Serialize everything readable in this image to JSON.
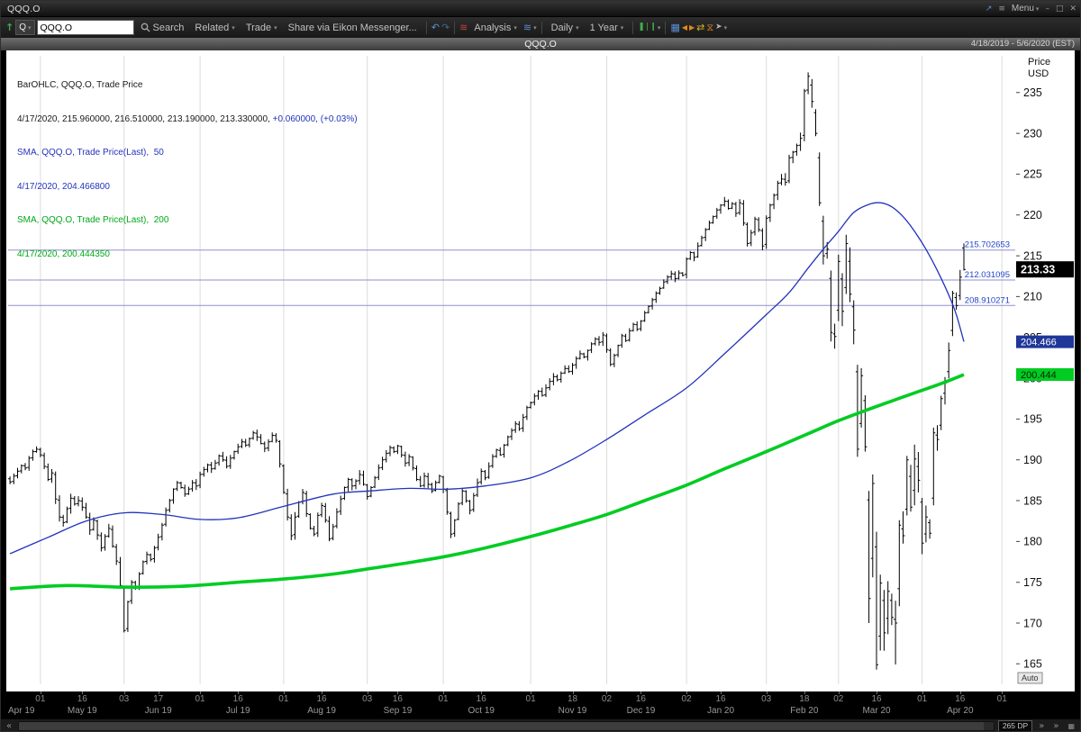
{
  "window": {
    "title": "QQQ.O",
    "menu_label": "Menu"
  },
  "icons": {
    "popout": "↗",
    "hamburger": "≡",
    "caret": "▾",
    "minimize": "–",
    "maximize": "□",
    "close": "✕",
    "app_arrow": "↑",
    "undo": "↶",
    "redo": "↷",
    "wave": "≋",
    "candle": "❚❘❙",
    "grid": "▦",
    "tri_left": "◀",
    "tri_right": "▶",
    "swap": "⇄",
    "hourglass": "⧖",
    "pointer": "➤",
    "double_left": "«",
    "double_right": "»"
  },
  "toolbar": {
    "category": "Q",
    "symbol_input": "QQQ.O",
    "search_label": "Search",
    "related_label": "Related",
    "trade_label": "Trade",
    "share_label": "Share via Eikon Messenger...",
    "analysis_label": "Analysis",
    "interval_label": "Daily",
    "range_label": "1 Year"
  },
  "chart_header": {
    "title": "QQQ.O",
    "date_range": "4/18/2019 - 5/6/2020 (EST)"
  },
  "legend": {
    "line1": "BarOHLC, QQQ.O, Trade Price",
    "line2_values": "4/17/2020, 215.960000, 216.510000, 213.190000, 213.330000,",
    "line2_change": " +0.060000, (+0.03%)",
    "line3": "SMA, QQQ.O, Trade Price(Last),  50",
    "line4": "4/17/2020, 204.466800",
    "line5": "SMA, QQQ.O, Trade Price(Last),  200",
    "line6": "4/17/2020, 200.444350"
  },
  "axis": {
    "title_line1": "Price",
    "title_line2": "USD",
    "ticks": [
      235,
      230,
      225,
      220,
      215,
      210,
      205,
      200,
      195,
      190,
      185,
      180,
      175,
      170,
      165
    ],
    "auto_label": "Auto"
  },
  "price_tags": [
    {
      "label": "213.33",
      "value": 213.33,
      "bg": "#000000",
      "fg": "#ffffff",
      "bold": true,
      "h": 18,
      "fs": 12.5
    },
    {
      "label": "204.466",
      "value": 204.4668,
      "bg": "#1e3799",
      "fg": "#ffffff",
      "bold": false,
      "h": 14,
      "fs": 11
    },
    {
      "label": "200.444",
      "value": 200.44435,
      "bg": "#00cc22",
      "fg": "#062506",
      "bold": false,
      "h": 14,
      "fs": 11
    }
  ],
  "h_lines": [
    {
      "label": "215.702653",
      "value": 215.702653
    },
    {
      "label": "212.031095",
      "value": 212.031095
    },
    {
      "label": "208.910271",
      "value": 208.910271
    }
  ],
  "x_axis": {
    "day_ticks": [
      {
        "i": 8,
        "label": "01"
      },
      {
        "i": 19,
        "label": "16"
      },
      {
        "i": 30,
        "label": "03"
      },
      {
        "i": 39,
        "label": "17"
      },
      {
        "i": 50,
        "label": "01"
      },
      {
        "i": 60,
        "label": "16"
      },
      {
        "i": 72,
        "label": "01"
      },
      {
        "i": 82,
        "label": "16"
      },
      {
        "i": 94,
        "label": "03"
      },
      {
        "i": 102,
        "label": "16"
      },
      {
        "i": 114,
        "label": "01"
      },
      {
        "i": 124,
        "label": "16"
      },
      {
        "i": 137,
        "label": "01"
      },
      {
        "i": 148,
        "label": "18"
      },
      {
        "i": 157,
        "label": "02"
      },
      {
        "i": 166,
        "label": "16"
      },
      {
        "i": 178,
        "label": "02"
      },
      {
        "i": 187,
        "label": "16"
      },
      {
        "i": 199,
        "label": "03"
      },
      {
        "i": 209,
        "label": "18"
      },
      {
        "i": 218,
        "label": "02"
      },
      {
        "i": 228,
        "label": "16"
      },
      {
        "i": 240,
        "label": "01"
      },
      {
        "i": 250,
        "label": "16"
      },
      {
        "i": 261,
        "label": "01"
      }
    ],
    "month_labels": [
      {
        "i": 0,
        "label": "Apr 19",
        "align": "left"
      },
      {
        "i": 19,
        "label": "May 19"
      },
      {
        "i": 39,
        "label": "Jun 19"
      },
      {
        "i": 60,
        "label": "Jul 19"
      },
      {
        "i": 82,
        "label": "Aug 19"
      },
      {
        "i": 102,
        "label": "Sep 19"
      },
      {
        "i": 124,
        "label": "Oct 19"
      },
      {
        "i": 148,
        "label": "Nov 19"
      },
      {
        "i": 166,
        "label": "Dec 19"
      },
      {
        "i": 187,
        "label": "Jan 20"
      },
      {
        "i": 209,
        "label": "Feb 20"
      },
      {
        "i": 228,
        "label": "Mar 20"
      },
      {
        "i": 250,
        "label": "Apr 20"
      }
    ]
  },
  "scrollbar": {
    "dp_label": "265 DP"
  },
  "chart_data": {
    "type": "ohlc_bar",
    "symbol": "QQQ.O",
    "interval": "Daily",
    "date_range": "4/18/2019 - 5/6/2020",
    "ylim": [
      162.5,
      239.5
    ],
    "total_slots": 265,
    "last_bar": {
      "date": "4/17/2020",
      "open": 215.96,
      "high": 216.51,
      "low": 213.19,
      "close": 213.33,
      "change": 0.06,
      "change_pct": 0.03
    },
    "closes": [
      187.3,
      188.0,
      188.6,
      189.3,
      189.0,
      190.2,
      191.0,
      191.3,
      190.6,
      189.2,
      187.6,
      188.4,
      185.2,
      183.0,
      182.3,
      184.0,
      185.3,
      184.6,
      185.0,
      184.2,
      183.0,
      181.4,
      182.6,
      180.8,
      179.2,
      180.6,
      181.6,
      179.4,
      177.6,
      174.6,
      169.1,
      172.6,
      175.0,
      174.4,
      176.0,
      177.5,
      178.4,
      177.8,
      179.2,
      180.5,
      182.0,
      183.8,
      185.0,
      186.4,
      187.2,
      186.6,
      185.8,
      186.4,
      187.2,
      186.8,
      188.2,
      188.8,
      189.4,
      188.9,
      189.6,
      190.5,
      190.0,
      189.2,
      190.2,
      191.0,
      191.6,
      192.2,
      191.8,
      192.6,
      193.3,
      192.8,
      192.0,
      191.4,
      192.2,
      193.0,
      192.4,
      189.5,
      186.0,
      183.0,
      180.7,
      183.0,
      184.8,
      186.0,
      183.4,
      181.6,
      180.9,
      183.2,
      184.4,
      182.6,
      180.3,
      181.8,
      183.6,
      185.2,
      186.6,
      187.6,
      186.8,
      187.4,
      188.2,
      187.0,
      185.5,
      186.6,
      187.8,
      189.0,
      190.0,
      190.8,
      191.5,
      191.0,
      191.7,
      190.6,
      189.6,
      190.4,
      189.0,
      187.6,
      186.8,
      188.0,
      187.0,
      186.2,
      187.2,
      188.0,
      186.4,
      183.6,
      180.9,
      182.6,
      184.6,
      186.2,
      185.0,
      183.8,
      185.6,
      187.2,
      188.6,
      187.8,
      189.2,
      190.4,
      191.2,
      190.6,
      191.8,
      192.8,
      193.6,
      194.4,
      193.8,
      195.2,
      196.4,
      197.0,
      197.8,
      198.4,
      197.9,
      198.8,
      199.6,
      200.2,
      199.8,
      200.6,
      201.2,
      200.8,
      201.6,
      202.4,
      203.0,
      202.6,
      203.4,
      204.2,
      204.8,
      204.4,
      205.3,
      203.5,
      201.7,
      202.8,
      204.0,
      205.2,
      204.6,
      205.8,
      206.6,
      206.0,
      207.0,
      208.0,
      208.8,
      209.6,
      210.4,
      211.0,
      211.8,
      212.4,
      212.8,
      212.2,
      212.9,
      212.6,
      214.6,
      215.4,
      214.8,
      216.2,
      217.2,
      218.2,
      219.0,
      219.8,
      220.6,
      221.2,
      221.7,
      220.8,
      221.4,
      220.2,
      221.5,
      219.0,
      216.5,
      217.8,
      219.5,
      218.2,
      216.2,
      219.6,
      221.2,
      222.4,
      223.9,
      224.4,
      224.0,
      227.0,
      227.7,
      228.5,
      229.4,
      235.2,
      237.0,
      233.9,
      230.0,
      221.5,
      215.0,
      215.8,
      205.6,
      205.1,
      214.3,
      208.2,
      216.5,
      210.3,
      205.9,
      191.3,
      200.3,
      191.6,
      173.0,
      187.1,
      164.9,
      174.9,
      168.8,
      173.9,
      170.7,
      170.0,
      182.0,
      180.7,
      190.0,
      184.2,
      190.1,
      187.5,
      179.8,
      183.0,
      181.0,
      193.3,
      192.5,
      197.5,
      199.4,
      203.4,
      210.4,
      208.9,
      212.4,
      213.33
    ],
    "vol_segments": [
      [
        0,
        0.8
      ],
      [
        8,
        1.15
      ],
      [
        30,
        0.85
      ],
      [
        72,
        1.05
      ],
      [
        94,
        0.8
      ],
      [
        114,
        0.85
      ],
      [
        157,
        0.75
      ],
      [
        178,
        0.9
      ],
      [
        199,
        1.3
      ],
      [
        211,
        2.6
      ],
      [
        218,
        4.0
      ],
      [
        240,
        2.4
      ],
      [
        248,
        1.6
      ]
    ],
    "overrides": {
      "210": {
        "high": 237.47
      },
      "226": {
        "low": 170.0
      },
      "228": {
        "low": 164.3
      },
      "233": {
        "low": 164.93
      },
      "251": {
        "open": 215.96,
        "high": 216.51,
        "low": 213.19,
        "close": 213.33
      }
    },
    "sma50": {
      "period": 50,
      "last": 204.4668,
      "color": "#2233bb",
      "width": 1.3,
      "anchors": [
        [
          0,
          178.5
        ],
        [
          10,
          180.5
        ],
        [
          20,
          182.5
        ],
        [
          30,
          183.5
        ],
        [
          40,
          183.3
        ],
        [
          50,
          182.7
        ],
        [
          60,
          182.9
        ],
        [
          72,
          184.3
        ],
        [
          85,
          185.8
        ],
        [
          95,
          186.2
        ],
        [
          105,
          186.5
        ],
        [
          115,
          186.4
        ],
        [
          125,
          186.8
        ],
        [
          137,
          187.8
        ],
        [
          147,
          189.8
        ],
        [
          157,
          192.5
        ],
        [
          167,
          195.5
        ],
        [
          178,
          198.8
        ],
        [
          188,
          203.0
        ],
        [
          199,
          207.8
        ],
        [
          205,
          210.5
        ],
        [
          210,
          213.5
        ],
        [
          214,
          215.8
        ],
        [
          218,
          218.0
        ],
        [
          222,
          220.3
        ],
        [
          226,
          221.3
        ],
        [
          229,
          221.5
        ],
        [
          232,
          221.0
        ],
        [
          235,
          219.8
        ],
        [
          238,
          218.0
        ],
        [
          241,
          215.8
        ],
        [
          244,
          213.2
        ],
        [
          247,
          210.2
        ],
        [
          249,
          207.8
        ],
        [
          251,
          204.47
        ]
      ]
    },
    "sma200": {
      "period": 200,
      "last": 200.44435,
      "color": "#00cc22",
      "width": 3.6,
      "anchors": [
        [
          0,
          174.2
        ],
        [
          15,
          174.6
        ],
        [
          30,
          174.4
        ],
        [
          45,
          174.5
        ],
        [
          60,
          175.0
        ],
        [
          72,
          175.4
        ],
        [
          85,
          176.0
        ],
        [
          95,
          176.7
        ],
        [
          105,
          177.4
        ],
        [
          115,
          178.2
        ],
        [
          125,
          179.2
        ],
        [
          137,
          180.6
        ],
        [
          147,
          181.9
        ],
        [
          157,
          183.3
        ],
        [
          167,
          185.0
        ],
        [
          178,
          186.9
        ],
        [
          188,
          188.9
        ],
        [
          199,
          191.0
        ],
        [
          210,
          193.2
        ],
        [
          218,
          194.8
        ],
        [
          226,
          196.2
        ],
        [
          232,
          197.2
        ],
        [
          238,
          198.2
        ],
        [
          243,
          199.0
        ],
        [
          247,
          199.7
        ],
        [
          251,
          200.44
        ]
      ]
    },
    "month_gridlines": [
      8,
      30,
      50,
      72,
      94,
      114,
      137,
      157,
      178,
      199,
      218,
      240,
      261
    ]
  }
}
